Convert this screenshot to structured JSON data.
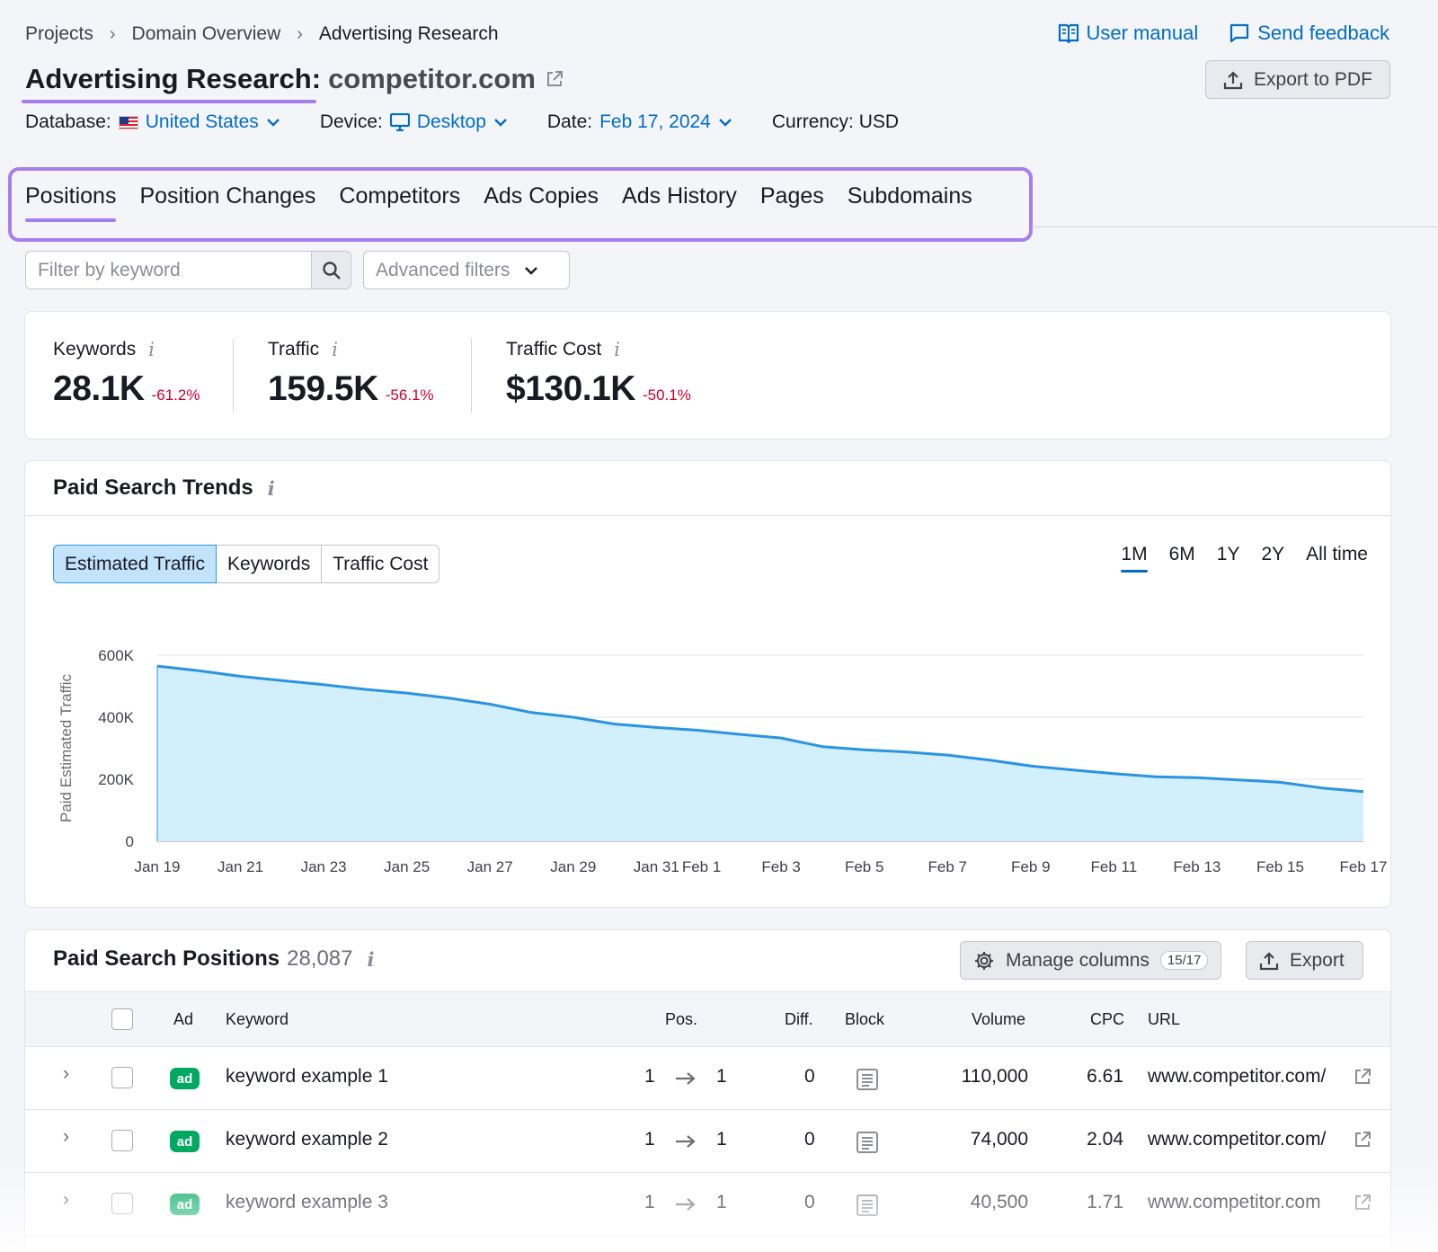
{
  "breadcrumb": [
    "Projects",
    "Domain Overview",
    "Advertising Research"
  ],
  "toplinks": {
    "manual": "User manual",
    "feedback": "Send feedback"
  },
  "title": {
    "prefix": "Advertising Research:",
    "domain": "competitor.com"
  },
  "export_pdf": "Export to PDF",
  "meta": {
    "database_label": "Database:",
    "database": "United States",
    "device_label": "Device:",
    "device": "Desktop",
    "date_label": "Date:",
    "date": "Feb 17, 2024",
    "currency": "Currency: USD"
  },
  "tabs": [
    "Positions",
    "Position Changes",
    "Competitors",
    "Ads Copies",
    "Ads History",
    "Pages",
    "Subdomains"
  ],
  "filters": {
    "keyword_placeholder": "Filter by keyword",
    "advanced": "Advanced filters"
  },
  "summary": {
    "keywords": {
      "label": "Keywords",
      "value": "28.1K",
      "change": "-61.2%"
    },
    "traffic": {
      "label": "Traffic",
      "value": "159.5K",
      "change": "-56.1%"
    },
    "traffic_cost": {
      "label": "Traffic Cost",
      "value": "$130.1K",
      "change": "-50.1%"
    }
  },
  "trends": {
    "title": "Paid Search Trends",
    "segments": [
      "Estimated Traffic",
      "Keywords",
      "Traffic Cost"
    ],
    "ranges": [
      "1M",
      "6M",
      "1Y",
      "2Y",
      "All time"
    ],
    "active_range": "1M"
  },
  "chart_data": {
    "type": "area",
    "ylabel": "Paid Estimated Traffic",
    "ylim": [
      0,
      600000
    ],
    "yticks": [
      "0",
      "200K",
      "400K",
      "600K"
    ],
    "xticks": [
      "Jan 19",
      "Jan 21",
      "Jan 23",
      "Jan 25",
      "Jan 27",
      "Jan 29",
      "Jan 31",
      "Feb 1",
      "Feb 3",
      "Feb 5",
      "Feb 7",
      "Feb 9",
      "Feb 11",
      "Feb 13",
      "Feb 15",
      "Feb 17"
    ],
    "x": [
      "Jan 19",
      "Jan 20",
      "Jan 21",
      "Jan 22",
      "Jan 23",
      "Jan 24",
      "Jan 25",
      "Jan 26",
      "Jan 27",
      "Jan 28",
      "Jan 29",
      "Jan 30",
      "Jan 31",
      "Feb 1",
      "Feb 2",
      "Feb 3",
      "Feb 4",
      "Feb 5",
      "Feb 6",
      "Feb 7",
      "Feb 8",
      "Feb 9",
      "Feb 10",
      "Feb 11",
      "Feb 12",
      "Feb 13",
      "Feb 14",
      "Feb 15",
      "Feb 16",
      "Feb 17"
    ],
    "values": [
      565000,
      550000,
      532000,
      518000,
      505000,
      490000,
      478000,
      462000,
      442000,
      415000,
      400000,
      378000,
      367000,
      358000,
      345000,
      333000,
      305000,
      295000,
      288000,
      278000,
      262000,
      243000,
      230000,
      218000,
      208000,
      205000,
      198000,
      190000,
      172000,
      160000
    ],
    "color": "#2b94e1",
    "fill": "#d2effd",
    "grid": true
  },
  "positions": {
    "title": "Paid Search Positions",
    "count": "28,087",
    "manage_columns": "Manage columns",
    "columns_count": "15/17",
    "export": "Export",
    "headers": {
      "ad": "Ad",
      "keyword": "Keyword",
      "pos": "Pos.",
      "diff": "Diff.",
      "block": "Block",
      "volume": "Volume",
      "cpc": "CPC",
      "url": "URL"
    },
    "rows": [
      {
        "ad": "ad",
        "keyword": "keyword example 1",
        "pos_from": "1",
        "pos_to": "1",
        "diff": "0",
        "volume": "110,000",
        "cpc": "6.61",
        "url": "www.competitor.com/"
      },
      {
        "ad": "ad",
        "keyword": "keyword example 2",
        "pos_from": "1",
        "pos_to": "1",
        "diff": "0",
        "volume": "74,000",
        "cpc": "2.04",
        "url": "www.competitor.com/"
      },
      {
        "ad": "ad",
        "keyword": "keyword example 3",
        "pos_from": "1",
        "pos_to": "1",
        "diff": "0",
        "volume": "40,500",
        "cpc": "1.71",
        "url": "www.competitor.com"
      }
    ]
  }
}
